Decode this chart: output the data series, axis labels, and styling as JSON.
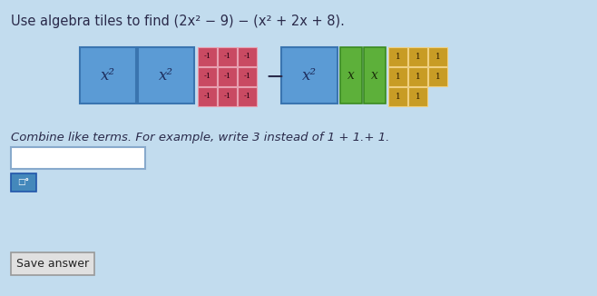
{
  "title": "Use algebra tiles to find (2x² − 9) − (x² + 2x + 8).",
  "bg_color": "#c2dcee",
  "tile_colors": {
    "blue": "#5b9bd5",
    "blue_dark": "#3a75b0",
    "red": "#c94a62",
    "red_border": "#e06080",
    "green": "#5db03a",
    "green_border": "#3a8a20",
    "gold": "#c89c25",
    "gold_border": "#a07810"
  },
  "combine_text": "Combine like terms. For example, write 3 instead of 1 + 1.+ 1.",
  "save_text": "Save answer",
  "text_color": "#2a2a4a",
  "minus_color": "#2a2a4a"
}
